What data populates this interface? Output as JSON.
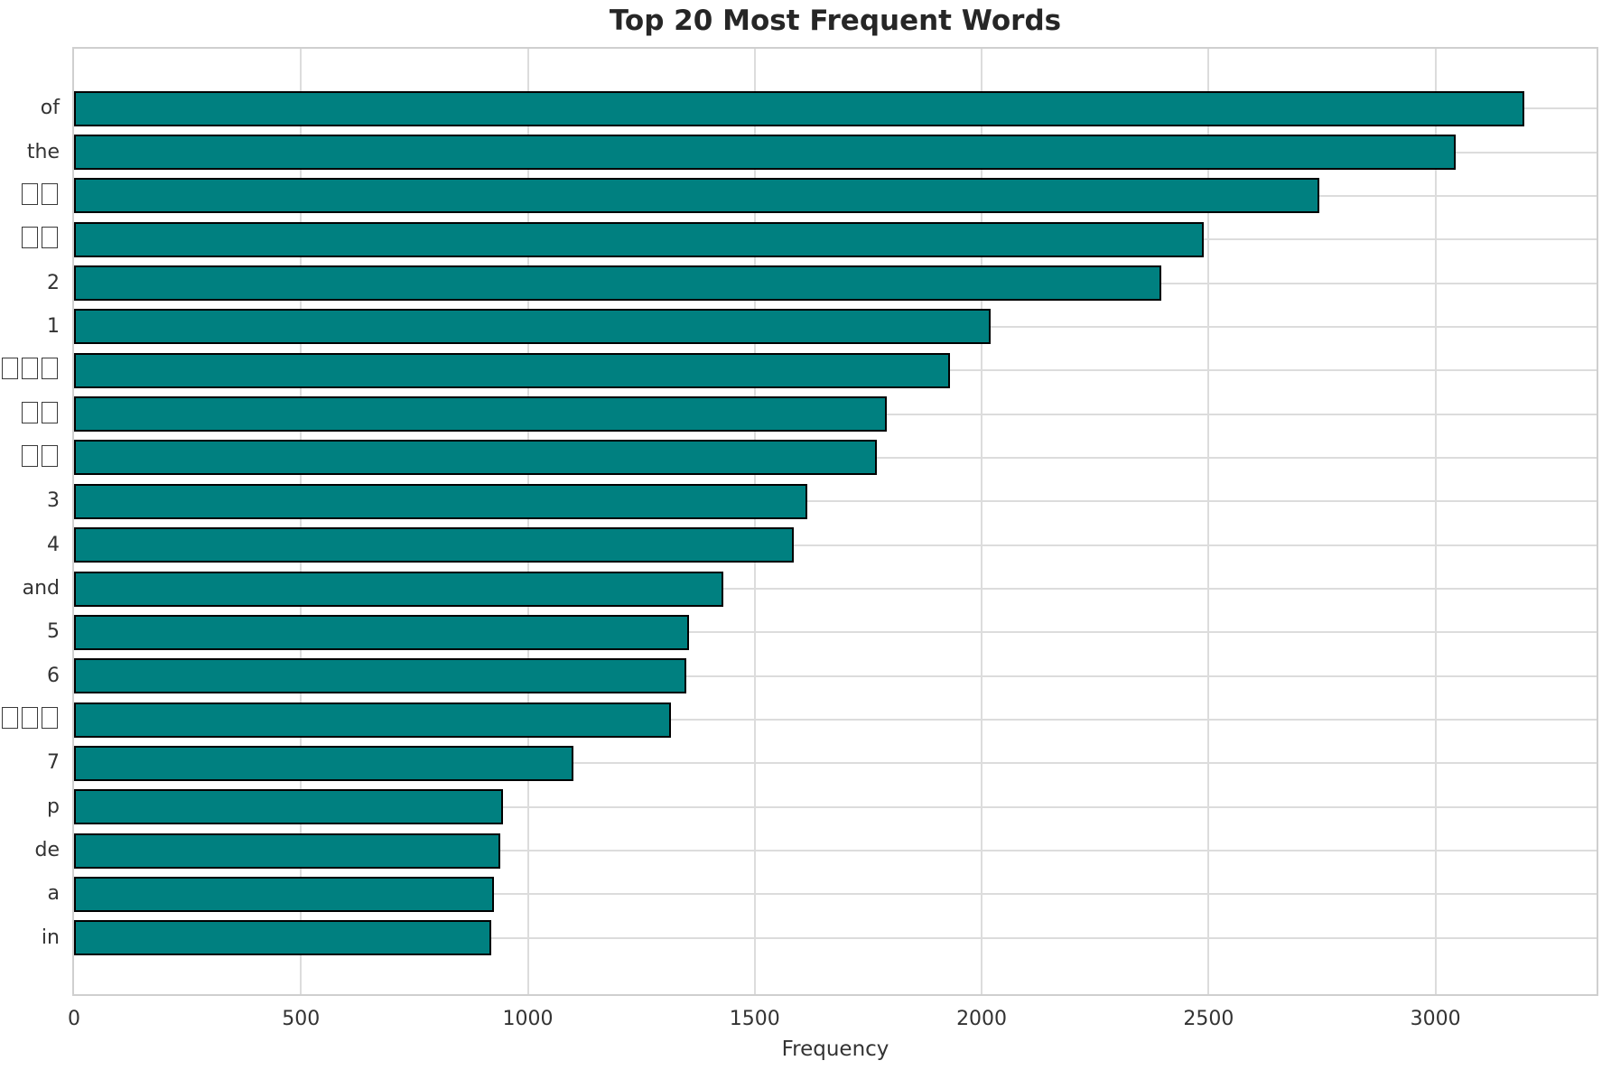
{
  "chart_data": {
    "type": "bar",
    "orientation": "horizontal",
    "title": "Top 20 Most Frequent Words",
    "xlabel": "Frequency",
    "ylabel": "",
    "categories": [
      "of",
      "the",
      "□□",
      "□□",
      "2",
      "1",
      "□□□",
      "□□",
      "□□",
      "3",
      "4",
      "and",
      "5",
      "6",
      "□□□□",
      "7",
      "p",
      "de",
      "a",
      "in"
    ],
    "values": [
      3195,
      3045,
      2745,
      2490,
      2395,
      2020,
      1930,
      1790,
      1770,
      1615,
      1585,
      1430,
      1355,
      1350,
      1315,
      1100,
      945,
      940,
      925,
      920
    ],
    "xlim": [
      0,
      3355
    ],
    "xticks": [
      0,
      500,
      1000,
      1500,
      2000,
      2500,
      3000
    ],
    "grid": true,
    "legend": "none",
    "colors": {
      "bar_fill": "#008080",
      "bar_edge": "#000000",
      "gridline": "#dcdcdc",
      "spine": "#cfcfcf",
      "title_text": "#262626",
      "tick_text": "#333333"
    }
  }
}
